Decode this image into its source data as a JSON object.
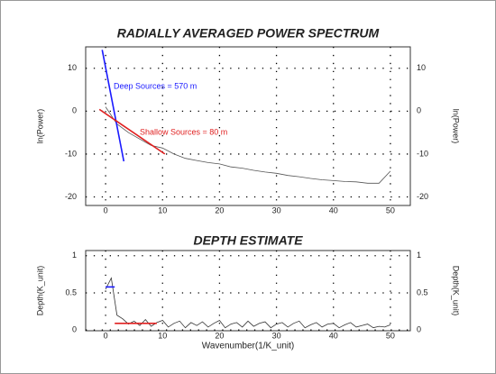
{
  "chart_data": [
    {
      "type": "line",
      "title": "RADIALLY AVERAGED POWER SPECTRUM",
      "ylabel": "ln(Power)",
      "xlim": [
        -3.5,
        53.5
      ],
      "ylim": [
        -22,
        15
      ],
      "xticks": [
        0,
        10,
        20,
        30,
        40,
        50
      ],
      "yticks": [
        -20,
        -10,
        0,
        10
      ],
      "grid": true,
      "series": [
        {
          "color": "#555555",
          "x": [
            0,
            2,
            4,
            6,
            8,
            10,
            12,
            14,
            16,
            18,
            20,
            22,
            24,
            26,
            28,
            30,
            32,
            34,
            36,
            38,
            40,
            42,
            44,
            46,
            48,
            50
          ],
          "values": [
            1,
            -3,
            -5,
            -6.5,
            -8,
            -8.6,
            -10,
            -11,
            -11.5,
            -12,
            -12.3,
            -13,
            -13.3,
            -13.8,
            -14.2,
            -14.5,
            -15,
            -15.3,
            -15.7,
            -16,
            -16.2,
            -16.4,
            -16.5,
            -16.8,
            -16.8,
            -14
          ]
        },
        {
          "color": "#1a1aff",
          "x": [
            -0.6,
            3.2
          ],
          "values": [
            14.3,
            -11.7
          ]
        },
        {
          "color": "#e02020",
          "x": [
            -1.1,
            10.4
          ],
          "values": [
            0.4,
            -10
          ]
        }
      ],
      "annotations": [
        {
          "text": "Deep Sources = 570 m",
          "color": "#1a1aff"
        },
        {
          "text": "Shallow Sources = 80 m",
          "color": "#e02020"
        }
      ]
    },
    {
      "type": "line",
      "title": "DEPTH ESTIMATE",
      "ylabel": "Depth(K_unit)",
      "xlabel": "Wavenumber(1/K_unit)",
      "xlim": [
        -3.5,
        53.5
      ],
      "ylim": [
        -0.01,
        1.07
      ],
      "xticks": [
        0,
        10,
        20,
        30,
        40,
        50
      ],
      "yticks": [
        0,
        0.5,
        1
      ],
      "grid": true,
      "series": [
        {
          "color": "#333333",
          "x": [
            0,
            1,
            2,
            3,
            4,
            5,
            6,
            7,
            8,
            9,
            10,
            11,
            12,
            13,
            14,
            15,
            16,
            17,
            18,
            19,
            20,
            21,
            22,
            23,
            24,
            25,
            26,
            27,
            28,
            29,
            30,
            31,
            32,
            33,
            34,
            35,
            36,
            37,
            38,
            39,
            40,
            41,
            42,
            43,
            44,
            45,
            46,
            47,
            48,
            49,
            50
          ],
          "values": [
            0.55,
            0.7,
            0.2,
            0.15,
            0.08,
            0.12,
            0.06,
            0.14,
            0.05,
            0.1,
            0.13,
            0.04,
            0.09,
            0.12,
            0.03,
            0.1,
            0.06,
            0.11,
            0.04,
            0.09,
            0.13,
            0.03,
            0.08,
            0.1,
            0.04,
            0.12,
            0.05,
            0.09,
            0.11,
            0.03,
            0.08,
            0.1,
            0.04,
            0.09,
            0.12,
            0.03,
            0.07,
            0.1,
            0.04,
            0.08,
            0.09,
            0.03,
            0.07,
            0.1,
            0.04,
            0.06,
            0.08,
            0.03,
            0.05,
            0.04,
            0.07
          ]
        },
        {
          "color": "#1a1aff",
          "x": [
            0,
            1.6
          ],
          "values": [
            0.58,
            0.58
          ]
        },
        {
          "color": "#e02020",
          "x": [
            1.6,
            9
          ],
          "values": [
            0.09,
            0.09
          ]
        }
      ]
    }
  ]
}
